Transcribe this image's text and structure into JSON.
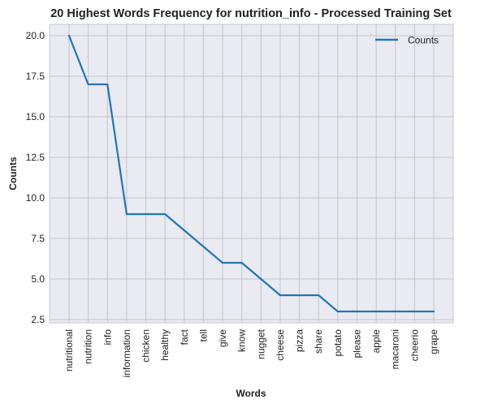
{
  "chart_data": {
    "type": "line",
    "title": "20 Highest Words Frequency for nutrition_info - Processed Training Set",
    "xlabel": "Words",
    "ylabel": "Counts",
    "categories": [
      "nutritional",
      "nutrition",
      "info",
      "information",
      "chicken",
      "healthy",
      "fact",
      "tell",
      "give",
      "know",
      "nugget",
      "cheese",
      "pizza",
      "share",
      "potato",
      "please",
      "apple",
      "macaroni",
      "cheerio",
      "grape"
    ],
    "series": [
      {
        "name": "Counts",
        "values": [
          20,
          17,
          17,
          9,
          9,
          9,
          8,
          7,
          6,
          6,
          5,
          4,
          4,
          4,
          3,
          3,
          3,
          3,
          3,
          3
        ]
      }
    ],
    "ylim": [
      2.3,
      20.7
    ],
    "yticks": [
      "2.5",
      "5.0",
      "7.5",
      "10.0",
      "12.5",
      "15.0",
      "17.5",
      "20.0"
    ],
    "grid": true,
    "legend_position": "top-right",
    "colors": {
      "line": "#1f77b4",
      "plot_background": "#eaeaf2",
      "grid": "#c4c4c8",
      "spine": "#c8c8cc"
    }
  }
}
